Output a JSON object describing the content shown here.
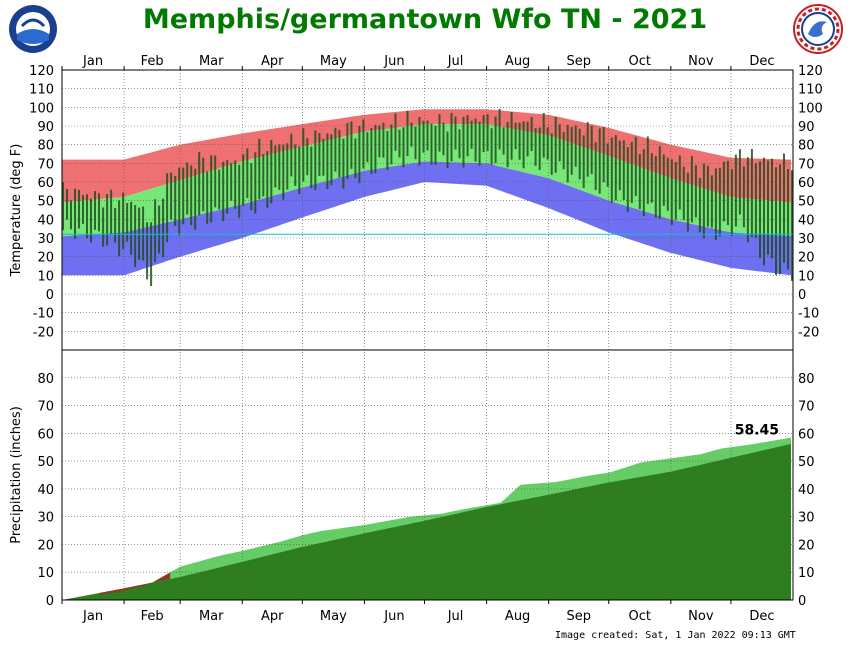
{
  "title": "Memphis/germantown Wfo TN - 2021",
  "footer": "Image created: Sat, 1 Jan 2022 09:13 GMT",
  "logos": {
    "left": "noaa-logo",
    "right": "national-weather-service-logo"
  },
  "colors": {
    "title": "#007a00",
    "record_high_band": "#ee7070",
    "normal_band": "#77e877",
    "record_low_band": "#6f6ff2",
    "observed_range": "#1f4f1f",
    "precip_normal": "#66cc66",
    "precip_observed": "#2e7d1e",
    "precip_below_normal": "#8b3a1a"
  },
  "chart_data": [
    {
      "type": "area",
      "title": "Temperature",
      "ylabel": "Temperature (deg F)",
      "ylim": [
        -30,
        120
      ],
      "yticks": [
        -20,
        -10,
        0,
        10,
        20,
        30,
        40,
        50,
        60,
        70,
        80,
        90,
        100,
        110,
        120
      ],
      "months": [
        "Jan",
        "Feb",
        "Mar",
        "Apr",
        "May",
        "Jun",
        "Jul",
        "Aug",
        "Sep",
        "Oct",
        "Nov",
        "Dec"
      ],
      "grid": true,
      "freezing_line": 32,
      "series": [
        {
          "x": [
            1,
            32,
            60,
            91,
            121,
            152,
            182,
            213,
            244,
            274,
            305,
            335,
            365
          ],
          "values": [
            72,
            72,
            80,
            86,
            91,
            96,
            99,
            99,
            96,
            89,
            80,
            73,
            72
          ]
        },
        {
          "x": [
            1,
            32,
            60,
            91,
            121,
            152,
            182,
            213,
            244,
            274,
            305,
            335,
            365
          ],
          "values": [
            49,
            52,
            61,
            71,
            79,
            87,
            91,
            91,
            85,
            74,
            62,
            52,
            49
          ]
        },
        {
          "x": [
            1,
            32,
            60,
            91,
            121,
            152,
            182,
            213,
            244,
            274,
            305,
            335,
            365
          ],
          "values": [
            31,
            33,
            40,
            48,
            57,
            66,
            71,
            70,
            62,
            50,
            40,
            33,
            31
          ]
        },
        {
          "x": [
            1,
            32,
            60,
            91,
            121,
            152,
            182,
            213,
            244,
            274,
            305,
            335,
            365
          ],
          "values": [
            10,
            10,
            20,
            30,
            41,
            52,
            60,
            58,
            46,
            33,
            22,
            14,
            10
          ]
        }
      ],
      "observed": {
        "x": [
          5,
          20,
          35,
          45,
          55,
          70,
          85,
          100,
          115,
          130,
          145,
          160,
          175,
          190,
          205,
          220,
          235,
          250,
          265,
          280,
          295,
          310,
          325,
          340,
          350,
          360
        ],
        "high": [
          55,
          52,
          50,
          40,
          65,
          72,
          70,
          78,
          82,
          85,
          89,
          90,
          93,
          92,
          94,
          94,
          92,
          90,
          88,
          82,
          78,
          70,
          66,
          74,
          72,
          70
        ],
        "low": [
          35,
          30,
          22,
          8,
          35,
          40,
          45,
          48,
          58,
          60,
          62,
          70,
          74,
          72,
          73,
          73,
          72,
          66,
          60,
          50,
          45,
          40,
          32,
          38,
          20,
          12
        ]
      }
    },
    {
      "type": "area",
      "title": "Precipitation",
      "ylabel": "Precipitation (inches)",
      "ylim": [
        0,
        90
      ],
      "yticks": [
        0,
        10,
        20,
        30,
        40,
        50,
        60,
        70,
        80
      ],
      "months": [
        "Jan",
        "Feb",
        "Mar",
        "Apr",
        "May",
        "Jun",
        "Jul",
        "Aug",
        "Sep",
        "Oct",
        "Nov",
        "Dec"
      ],
      "grid": true,
      "total_label": "58.45",
      "series": [
        {
          "x": [
            1,
            32,
            60,
            91,
            121,
            152,
            182,
            213,
            244,
            274,
            305,
            335,
            365
          ],
          "values": [
            0,
            4.2,
            8.3,
            13.7,
            19.1,
            24.0,
            28.5,
            33.5,
            37.9,
            42.3,
            46.2,
            51.2,
            56.2
          ]
        },
        {
          "x": [
            1,
            30,
            45,
            60,
            70,
            80,
            90,
            110,
            122,
            130,
            152,
            175,
            190,
            200,
            220,
            230,
            248,
            262,
            275,
            290,
            310,
            320,
            330,
            345,
            365
          ],
          "values": [
            0,
            3.0,
            5.8,
            12.0,
            14.0,
            16.0,
            17.5,
            21.0,
            23.5,
            24.8,
            27.0,
            30.0,
            31.0,
            32.5,
            35.0,
            41.5,
            42.5,
            44.5,
            46.0,
            49.5,
            51.5,
            52.5,
            54.5,
            56.0,
            58.45
          ]
        }
      ]
    }
  ]
}
